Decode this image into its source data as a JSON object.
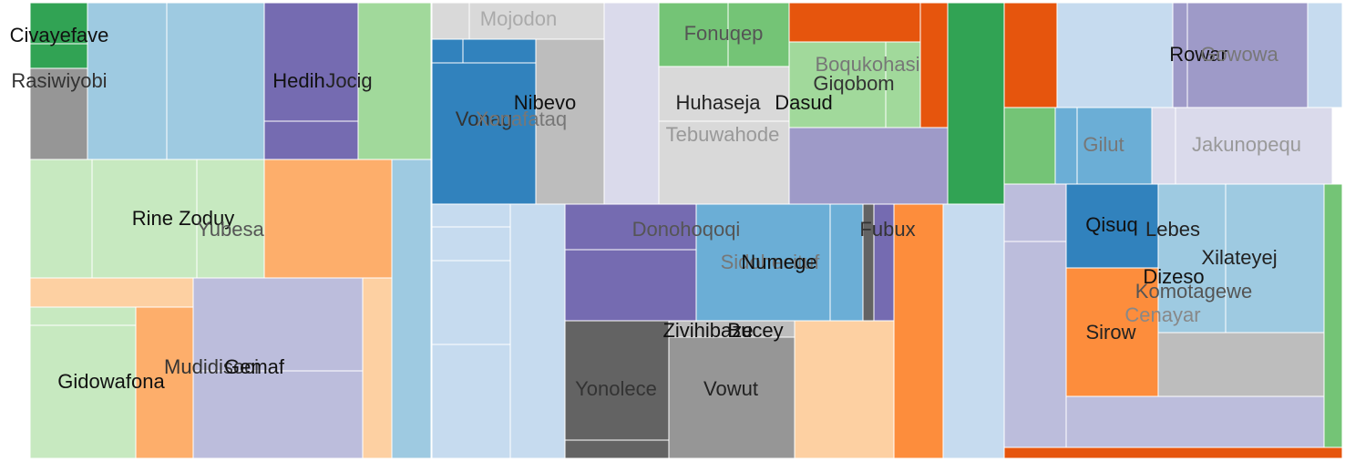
{
  "chart_data": {
    "type": "treemap",
    "labels": [
      {
        "text": "Civayefave",
        "color": "#111111",
        "faded": false
      },
      {
        "text": "Rasiwiyobi",
        "color": "#333333",
        "faded": false
      },
      {
        "text": "Hedih",
        "color": "#111111",
        "faded": false
      },
      {
        "text": "Jocig",
        "color": "#222222",
        "faded": false
      },
      {
        "text": "Rine Zoduy",
        "color": "#111111",
        "faded": false
      },
      {
        "text": "Yubesa",
        "color": "#555555",
        "faded": true
      },
      {
        "text": "Gidowafona",
        "color": "#111111",
        "faded": false
      },
      {
        "text": "Mudidisoci",
        "color": "#333333",
        "faded": false
      },
      {
        "text": "Gemaf",
        "color": "#111111",
        "faded": false
      },
      {
        "text": "Mojodon",
        "color": "#aaaaaa",
        "faded": true
      },
      {
        "text": "Nibevo",
        "color": "#111111",
        "faded": false
      },
      {
        "text": "Vonag",
        "color": "#333333",
        "faded": false
      },
      {
        "text": "Xonafataq",
        "color": "#777777",
        "faded": true
      },
      {
        "text": "Fonuqep",
        "color": "#555555",
        "faded": true
      },
      {
        "text": "Boqukohasi",
        "color": "#777777",
        "faded": true
      },
      {
        "text": "Giqobom",
        "color": "#333333",
        "faded": false
      },
      {
        "text": "Huhaseja",
        "color": "#222222",
        "faded": false
      },
      {
        "text": "Dasud",
        "color": "#111111",
        "faded": false
      },
      {
        "text": "Tebuwahode",
        "color": "#999999",
        "faded": true
      },
      {
        "text": "Donohoqoqi",
        "color": "#555555",
        "faded": true
      },
      {
        "text": "Fubux",
        "color": "#333333",
        "faded": false
      },
      {
        "text": "Sidohecituf",
        "color": "#777777",
        "faded": true
      },
      {
        "text": "Numege",
        "color": "#111111",
        "faded": false
      },
      {
        "text": "Zivihibaze",
        "color": "#111111",
        "faded": false
      },
      {
        "text": "Bucey",
        "color": "#111111",
        "faded": false
      },
      {
        "text": "Yonolece",
        "color": "#333333",
        "faded": false
      },
      {
        "text": "Vowut",
        "color": "#222222",
        "faded": false
      },
      {
        "text": "Rowar",
        "color": "#111111",
        "faded": false
      },
      {
        "text": "Gowowa",
        "color": "#777777",
        "faded": true
      },
      {
        "text": "Gilut",
        "color": "#777777",
        "faded": true
      },
      {
        "text": "Jakunopequ",
        "color": "#999999",
        "faded": true
      },
      {
        "text": "Qisuq",
        "color": "#111111",
        "faded": false
      },
      {
        "text": "Lebes",
        "color": "#222222",
        "faded": false
      },
      {
        "text": "Xilateyej",
        "color": "#222222",
        "faded": false
      },
      {
        "text": "Dizeso",
        "color": "#111111",
        "faded": false
      },
      {
        "text": "Komotagewe",
        "color": "#555555",
        "faded": true
      },
      {
        "text": "Cenayar",
        "color": "#888888",
        "faded": true
      },
      {
        "text": "Sirow",
        "color": "#222222",
        "faded": false
      }
    ],
    "palette": {
      "green_dark": "#31a354",
      "green_mid": "#74c476",
      "green_light": "#a1d99b",
      "green_pale": "#c7e9c0",
      "blue_dark": "#3182bd",
      "blue_mid": "#6baed6",
      "blue_light": "#9ecae1",
      "blue_pale": "#c6dbef",
      "purple_dark": "#756bb1",
      "purple_mid": "#9e9ac8",
      "purple_light": "#bcbddc",
      "purple_pale": "#dadaeb",
      "orange_dark": "#e6550d",
      "orange_mid": "#fd8d3c",
      "orange_light": "#fdae6b",
      "orange_pale": "#fdd0a2",
      "grey_dark": "#636363",
      "grey_mid": "#969696",
      "grey_light": "#bdbdbd",
      "grey_pale": "#d9d9d9"
    }
  }
}
